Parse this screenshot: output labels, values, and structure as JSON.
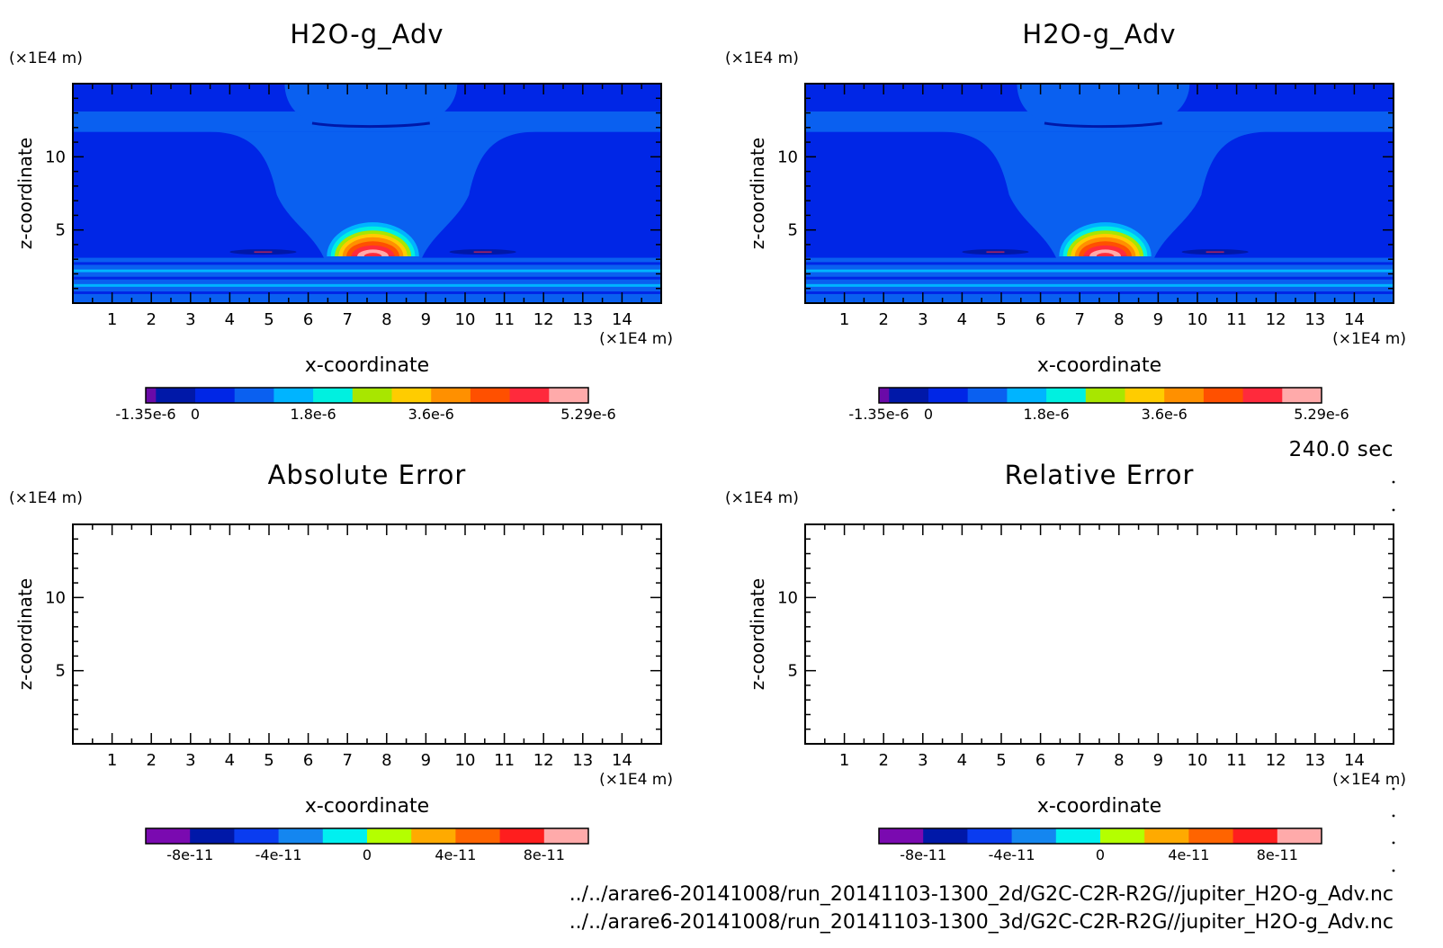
{
  "time_label": "240.0 sec",
  "files": [
    "../../arare6-20141008/run_20141103-1300_2d/G2C-C2R-R2G//jupiter_H2O-g_Adv.nc",
    "../../arare6-20141008/run_20141103-1300_3d/G2C-C2R-R2G//jupiter_H2O-g_Adv.nc"
  ],
  "colors": {
    "field": [
      "#6a0aa8",
      "#0018a8",
      "#0026e6",
      "#0a60f0",
      "#00b4ff",
      "#00f0e0",
      "#a8e600",
      "#ffcc00",
      "#ff9000",
      "#ff5000",
      "#ff2a3c",
      "#ffaaaa"
    ],
    "error": [
      "#7a0ab0",
      "#0018a8",
      "#0a3cf0",
      "#1486f0",
      "#00f0f0",
      "#b4ff00",
      "#ffaa00",
      "#ff6400",
      "#ff1e1e",
      "#ffaaaa"
    ]
  },
  "chart_data": [
    {
      "type": "heatmap",
      "title": "H2O-g_Adv",
      "xlabel": "x-coordinate",
      "ylabel": "z-coordinate",
      "x_unit": "(×1E4 m)",
      "y_unit": "(×1E4 m)",
      "xlim": [
        0,
        15
      ],
      "ylim": [
        0,
        15
      ],
      "x_ticks": [
        1,
        2,
        3,
        4,
        5,
        6,
        7,
        8,
        9,
        10,
        11,
        12,
        13,
        14
      ],
      "y_ticks": [
        5,
        10
      ],
      "colorbar": {
        "colormap": "field",
        "range": [
          -1.35e-06,
          5.29e-06
        ],
        "ticks": [
          "-1.35e-6",
          "0",
          "1.8e-6",
          "3.6e-6",
          "5.29e-6"
        ]
      },
      "field": "filled"
    },
    {
      "type": "heatmap",
      "title": "H2O-g_Adv",
      "xlabel": "x-coordinate",
      "ylabel": "z-coordinate",
      "x_unit": "(×1E4 m)",
      "y_unit": "(×1E4 m)",
      "xlim": [
        0,
        15
      ],
      "ylim": [
        0,
        15
      ],
      "x_ticks": [
        1,
        2,
        3,
        4,
        5,
        6,
        7,
        8,
        9,
        10,
        11,
        12,
        13,
        14
      ],
      "y_ticks": [
        5,
        10
      ],
      "colorbar": {
        "colormap": "field",
        "range": [
          -1.35e-06,
          5.29e-06
        ],
        "ticks": [
          "-1.35e-6",
          "0",
          "1.8e-6",
          "3.6e-6",
          "5.29e-6"
        ]
      },
      "field": "filled"
    },
    {
      "type": "heatmap",
      "title": "Absolute Error",
      "xlabel": "x-coordinate",
      "ylabel": "z-coordinate",
      "x_unit": "(×1E4 m)",
      "y_unit": "(×1E4 m)",
      "xlim": [
        0,
        15
      ],
      "ylim": [
        0,
        15
      ],
      "x_ticks": [
        1,
        2,
        3,
        4,
        5,
        6,
        7,
        8,
        9,
        10,
        11,
        12,
        13,
        14
      ],
      "y_ticks": [
        5,
        10
      ],
      "colorbar": {
        "colormap": "error",
        "range": [
          -1e-10,
          1e-10
        ],
        "ticks": [
          "-8e-11",
          "-4e-11",
          "0",
          "4e-11",
          "8e-11"
        ]
      },
      "field": "empty"
    },
    {
      "type": "heatmap",
      "title": "Relative Error",
      "xlabel": "x-coordinate",
      "ylabel": "z-coordinate",
      "x_unit": "(×1E4 m)",
      "y_unit": "(×1E4 m)",
      "xlim": [
        0,
        15
      ],
      "ylim": [
        0,
        15
      ],
      "x_ticks": [
        1,
        2,
        3,
        4,
        5,
        6,
        7,
        8,
        9,
        10,
        11,
        12,
        13,
        14
      ],
      "y_ticks": [
        5,
        10
      ],
      "colorbar": {
        "colormap": "error",
        "range": [
          -1e-10,
          1e-10
        ],
        "ticks": [
          "-8e-11",
          "-4e-11",
          "0",
          "4e-11",
          "8e-11"
        ]
      },
      "field": "empty"
    }
  ]
}
